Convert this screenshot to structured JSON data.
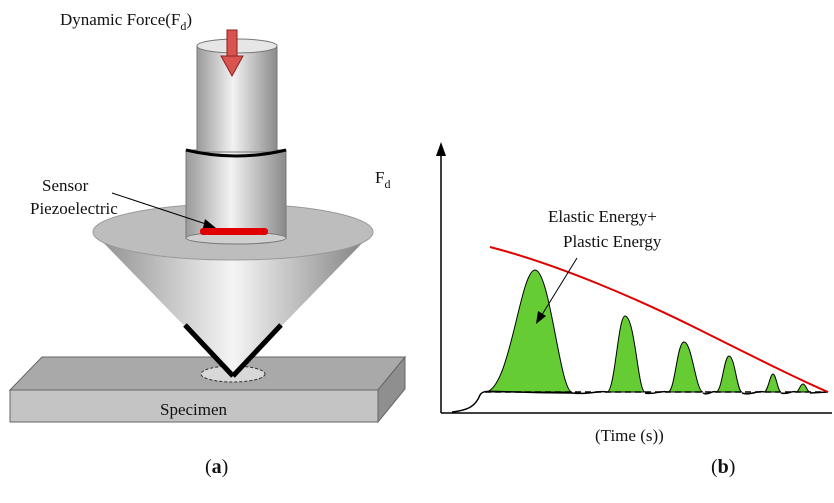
{
  "panel_a": {
    "force_label": {
      "text": "Dynamic Force(F",
      "subscript": "d",
      "close": ")"
    },
    "sensor_label": [
      "Sensor",
      "Piezoelectric"
    ],
    "specimen_label": "Specimen",
    "caption": {
      "open": "(",
      "letter": "a",
      "close": ")"
    }
  },
  "panel_b": {
    "y_label": {
      "text": "F",
      "subscript": "d"
    },
    "annotation": [
      "Elastic Energy+",
      "Plastic Energy"
    ],
    "x_label": "(Time (s))",
    "caption": {
      "open": "(",
      "letter": "b",
      "close": ")"
    }
  }
}
